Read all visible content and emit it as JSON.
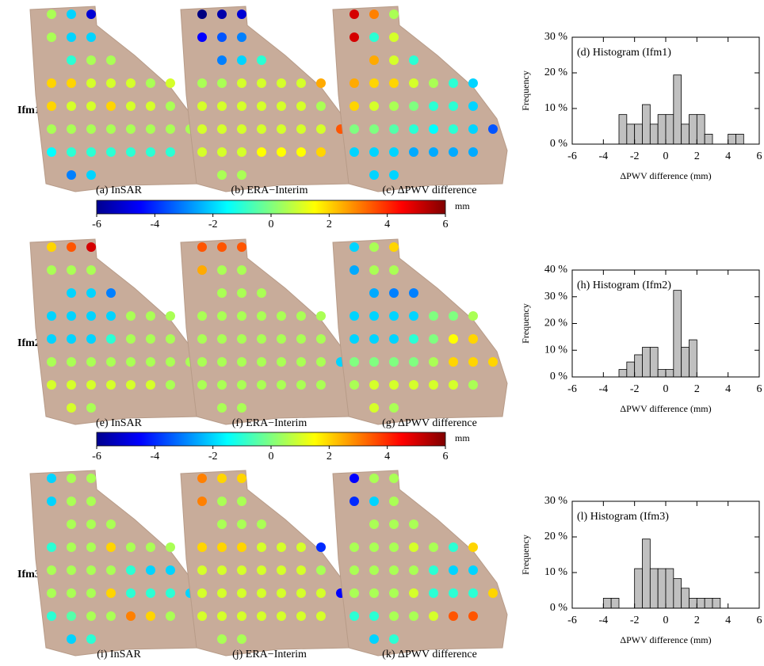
{
  "row_labels": [
    "Ifm1",
    "Ifm2",
    "Ifm3"
  ],
  "colorbars": [
    {
      "clim": [
        -6,
        6
      ],
      "ticks": [
        -6,
        -4,
        -2,
        0,
        2,
        4,
        6
      ],
      "label": "mm"
    },
    {
      "clim": [
        -6,
        6
      ],
      "ticks": [
        -6,
        -4,
        -2,
        0,
        2,
        4,
        6
      ],
      "label": "mm"
    }
  ],
  "chart_data": [
    {
      "type": "map",
      "caption": "(a) InSAR",
      "values": [
        0.5,
        -2,
        -5,
        0.5,
        -2,
        -2,
        -1,
        0.5,
        0.5,
        2,
        2,
        1,
        1,
        1,
        0.5,
        1,
        2,
        1,
        1,
        2,
        1,
        1,
        0.5,
        0.5,
        0.5,
        0.5,
        0.5,
        0.5,
        0.5,
        0.5,
        0.5,
        -1.5,
        -1,
        -1,
        -1,
        -1,
        -1,
        -1,
        -3,
        -2
      ]
    },
    {
      "type": "map",
      "caption": "(b) ERA−Interim",
      "values": [
        -6,
        -5.5,
        -5,
        -4.5,
        -3.5,
        -3,
        -3,
        -2,
        -1,
        0.5,
        0.5,
        1,
        1,
        1,
        1,
        2.5,
        1,
        1,
        1,
        1,
        1,
        1,
        0.5,
        1,
        1,
        1,
        1,
        1,
        1,
        1,
        3.5,
        1,
        1,
        1,
        1.5,
        1.5,
        1.5,
        2,
        0.5,
        0.5
      ]
    },
    {
      "type": "map",
      "caption": "(c) ΔPWV difference",
      "values": [
        5,
        3,
        0.5,
        5,
        -1,
        1,
        2.5,
        1,
        -1,
        2.5,
        2,
        2,
        1,
        0.5,
        -1,
        -2,
        2,
        1,
        0.5,
        0,
        -1,
        -1,
        -2,
        0,
        0,
        -0.5,
        -1,
        -1.5,
        -1,
        -2,
        -3.5,
        -2,
        -2,
        -2,
        -2.5,
        -2.5,
        -2.5,
        -2.5,
        -2,
        -2
      ]
    },
    {
      "type": "histogram",
      "title": "(d) Histogram (Ifm1)",
      "xlabel": "ΔPWV difference (mm)",
      "ylabel": "Frequency",
      "color": "#c0c0c0",
      "bins": [
        -3,
        -2.5,
        -2,
        -1.5,
        -1,
        -0.5,
        0,
        0.5,
        1,
        1.5,
        2,
        2.5,
        3,
        3.5,
        4,
        4.5,
        5
      ],
      "values": [
        8.3,
        5.6,
        5.6,
        11.1,
        5.6,
        8.3,
        8.3,
        19.4,
        5.6,
        8.3,
        8.3,
        2.8,
        0,
        0,
        2.8,
        2.8
      ],
      "xlim": [
        -6,
        6
      ],
      "xticks": [
        -6,
        -4,
        -2,
        0,
        2,
        4,
        6
      ],
      "ylim": [
        0,
        30
      ],
      "yticks": [
        {
          "value": 0,
          "label": "0 %"
        },
        {
          "value": 10,
          "label": "10 %"
        },
        {
          "value": 20,
          "label": "20 %"
        },
        {
          "value": 30,
          "label": "30 %"
        }
      ]
    },
    {
      "type": "map",
      "caption": "(e) InSAR",
      "values": [
        2,
        3.5,
        5,
        0.5,
        0.5,
        0.5,
        -2,
        -2,
        -3,
        -2,
        -2,
        -2,
        -2,
        0.5,
        0.5,
        0.5,
        -2,
        -2,
        -2,
        -1,
        0.5,
        0.5,
        0.5,
        0.5,
        0.5,
        0.5,
        0.5,
        0.5,
        0.5,
        0.5,
        0.5,
        1,
        1,
        1,
        1,
        1,
        1,
        0.5,
        1,
        0.5
      ]
    },
    {
      "type": "map",
      "caption": "(f) ERA−Interim",
      "values": [
        3.5,
        3.5,
        3.5,
        2.5,
        0.5,
        0.5,
        0.5,
        0.5,
        0.5,
        0.5,
        0.5,
        0.5,
        0.5,
        0.5,
        0.5,
        0.5,
        0.5,
        0.5,
        0.5,
        0.5,
        0.5,
        0.5,
        0.5,
        0.5,
        0.5,
        0.5,
        0.5,
        0.5,
        0.5,
        0.5,
        -2,
        0.5,
        0.5,
        0.5,
        0.5,
        0.5,
        0.5,
        0.5,
        0.5,
        0.5
      ]
    },
    {
      "type": "map",
      "caption": "(g) ΔPWV difference",
      "values": [
        -2,
        0.5,
        2,
        -2.5,
        0.5,
        0.5,
        -2.5,
        -3,
        -3,
        -2,
        -2,
        -2,
        -2,
        0,
        0,
        0.5,
        -2,
        -2,
        -2,
        -1,
        0,
        1.5,
        2,
        0,
        0,
        0,
        0,
        0.5,
        2,
        2,
        2,
        0.5,
        1,
        1,
        1,
        1,
        1,
        0.5,
        1,
        0.5
      ]
    },
    {
      "type": "histogram",
      "title": "(h) Histogram (Ifm2)",
      "xlabel": "ΔPWV difference (mm)",
      "ylabel": "Frequency",
      "color": "#c0c0c0",
      "bins": [
        -3,
        -2.5,
        -2,
        -1.5,
        -1,
        -0.5,
        0,
        0.5,
        1,
        1.5,
        2
      ],
      "values": [
        2.8,
        5.6,
        8.3,
        11.1,
        11.1,
        2.8,
        2.8,
        32.4,
        11.1,
        13.9
      ],
      "xlim": [
        -6,
        6
      ],
      "xticks": [
        -6,
        -4,
        -2,
        0,
        2,
        4,
        6
      ],
      "ylim": [
        0,
        40
      ],
      "yticks": [
        {
          "value": 0,
          "label": "0 %"
        },
        {
          "value": 10,
          "label": "10 %"
        },
        {
          "value": 20,
          "label": "20 %"
        },
        {
          "value": 30,
          "label": "30 %"
        },
        {
          "value": 40,
          "label": "40 %"
        }
      ]
    },
    {
      "type": "map",
      "caption": "(i) InSAR",
      "values": [
        -2,
        0.5,
        0.5,
        -2,
        0.5,
        0.5,
        0.5,
        0.5,
        0.5,
        -1,
        0.5,
        0.5,
        2,
        0.5,
        0.5,
        0.5,
        0.5,
        0.5,
        0.5,
        0.5,
        -1,
        -2,
        -2,
        0.5,
        0.5,
        0.5,
        2,
        -1,
        -1,
        -1,
        -2,
        -1,
        -0.5,
        0.5,
        0.5,
        3,
        2,
        0.5,
        -2,
        -1
      ]
    },
    {
      "type": "map",
      "caption": "(j) ERA−Interim",
      "values": [
        3,
        2,
        2,
        3,
        0.5,
        0.5,
        0.5,
        0.5,
        0.5,
        2,
        2,
        2,
        1,
        1,
        1,
        -4,
        1,
        1,
        1,
        1,
        1,
        1,
        0.5,
        1,
        1,
        1,
        1,
        1,
        1,
        1,
        -4.5,
        1,
        1,
        1,
        1,
        1,
        1,
        1,
        0.5,
        0.5
      ]
    },
    {
      "type": "map",
      "caption": "(k) ΔPWV difference",
      "values": [
        -4.5,
        0.5,
        0.5,
        -4,
        -2,
        0.5,
        0.5,
        0.5,
        0.5,
        0.5,
        0.5,
        0.5,
        1,
        0.5,
        -1,
        2,
        0.5,
        0.5,
        0.5,
        0.5,
        -1,
        -2,
        -2,
        0.5,
        0.5,
        0.5,
        1,
        -1,
        -1,
        -1,
        2,
        -1,
        -1,
        0.5,
        0.5,
        1,
        3.5,
        3.5,
        -2,
        -1
      ]
    },
    {
      "type": "histogram",
      "title": "(l) Histogram (Ifm3)",
      "xlabel": "ΔPWV difference (mm)",
      "ylabel": "Frequency",
      "color": "#c0c0c0",
      "bins": [
        -4,
        -3.5,
        -3,
        -2.5,
        -2,
        -1.5,
        -1,
        -0.5,
        0,
        0.5,
        1,
        1.5,
        2,
        2.5,
        3,
        3.5
      ],
      "values": [
        2.8,
        2.8,
        0,
        0,
        11.1,
        19.4,
        11.1,
        11.1,
        11.1,
        8.3,
        5.6,
        2.8,
        2.8,
        2.8,
        2.8
      ],
      "xlim": [
        -6,
        6
      ],
      "xticks": [
        -6,
        -4,
        -2,
        0,
        2,
        4,
        6
      ],
      "ylim": [
        0,
        30
      ],
      "yticks": [
        {
          "value": 0,
          "label": "0 %"
        },
        {
          "value": 10,
          "label": "10 %"
        },
        {
          "value": 20,
          "label": "20 %"
        },
        {
          "value": 30,
          "label": "30 %"
        }
      ]
    }
  ]
}
